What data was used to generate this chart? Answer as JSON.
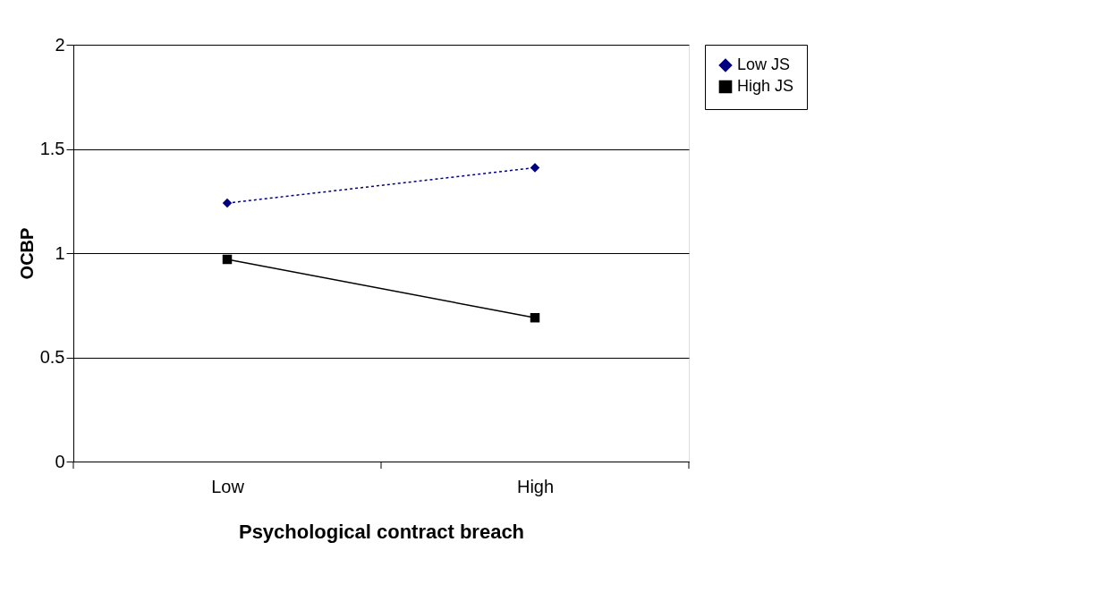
{
  "chart_data": {
    "type": "line",
    "xlabel": "Psychological contract breach",
    "ylabel": "OCBP",
    "categories": [
      "Low",
      "High"
    ],
    "series": [
      {
        "name": "Low JS",
        "color": "#000080",
        "line_style": "dotted",
        "marker": "diamond",
        "values": [
          1.24,
          1.41
        ]
      },
      {
        "name": "High JS",
        "color": "#000000",
        "line_style": "solid",
        "marker": "square",
        "values": [
          0.97,
          0.69
        ]
      }
    ],
    "ylim": [
      0,
      2
    ],
    "yticks": [
      0,
      0.5,
      1,
      1.5,
      2
    ],
    "grid": "y",
    "legend": "right"
  }
}
